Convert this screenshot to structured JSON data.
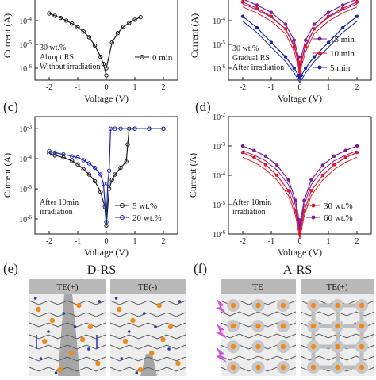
{
  "panel_labels": {
    "c": "(c)",
    "d": "(d)",
    "e": "(e)",
    "f": "(f)"
  },
  "colors": {
    "black": "#1a1a1a",
    "red": "#e0182b",
    "blue": "#1c26a8",
    "purple": "#7d1d96",
    "orange": "#f08a1c",
    "dot_blue": "#2a35a6",
    "gray_panel": "#ededed",
    "gray_header": "#b9b9b9",
    "lightning": "#d452d8"
  },
  "chart_data": [
    {
      "id": "a",
      "type": "line",
      "xlabel": "Voltage (V)",
      "ylabel": "Current (A)",
      "xlim": [
        -2.5,
        2.5
      ],
      "ylim_log10": [
        -6.5,
        -3
      ],
      "log_y": true,
      "xticks": [
        "-2",
        "-1",
        "0",
        "1",
        "2"
      ],
      "yticks": [
        "10-6",
        "10-5",
        "10-4"
      ],
      "annotation": [
        "30 wt.%",
        "Abrupt RS",
        "Without irradiation"
      ],
      "series": [
        {
          "name": "0 min",
          "color": "#1a1a1a",
          "x": [
            -2,
            -1.8,
            -1.6,
            -1.4,
            -1.2,
            -1,
            -0.8,
            -0.6,
            -0.4,
            -0.2,
            -0.1,
            0
          ],
          "y": [
            0.0002,
            0.00016,
            0.00013,
            0.0001,
            7.5e-05,
            5.2e-05,
            3.5e-05,
            2e-05,
            9e-06,
            3e-06,
            1.5e-06,
            5e-07
          ]
        },
        {
          "name": "",
          "color": "#1a1a1a",
          "x": [
            0,
            0.2,
            0.4,
            0.6,
            0.8,
            1.0,
            1.2
          ],
          "y": [
            1e-06,
            1.2e-05,
            3e-05,
            5.5e-05,
            8e-05,
            0.00011,
            0.00014
          ]
        }
      ]
    },
    {
      "id": "b",
      "type": "line",
      "xlabel": "Voltage (V)",
      "ylabel": "Current (A)",
      "xlim": [
        -2.5,
        2.5
      ],
      "ylim_log10": [
        -6.5,
        -3
      ],
      "log_y": true,
      "xticks": [
        "-2",
        "-1",
        "0",
        "1",
        "2"
      ],
      "yticks": [
        "10-6",
        "10-5",
        "10-4"
      ],
      "annotation": [
        "30 wt.%",
        "Gradual RS",
        "After irradiation"
      ],
      "legend_position": "right",
      "series": [
        {
          "name": "15 min",
          "color": "#7d1d96",
          "x": [
            -2,
            -1.5,
            -1,
            -0.5,
            -0.2,
            -0.05,
            0,
            0.05,
            0.2,
            0.5,
            1,
            1.5,
            2
          ],
          "y": [
            0.0008,
            0.00045,
            0.00022,
            7e-05,
            1.5e-05,
            3e-06,
            1e-06,
            3e-06,
            1.5e-05,
            7e-05,
            0.00022,
            0.00045,
            0.0008
          ]
        },
        {
          "name": "10 min",
          "color": "#e0182b",
          "x": [
            -2,
            -1.5,
            -1,
            -0.5,
            -0.2,
            -0.05,
            0,
            0.05,
            0.2,
            0.5,
            1,
            1.5,
            2
          ],
          "y": [
            0.0006,
            0.00033,
            0.00015,
            4.5e-05,
            8e-06,
            1.8e-06,
            7e-07,
            1.8e-06,
            8e-06,
            4.5e-05,
            0.00015,
            0.00033,
            0.0006
          ]
        },
        {
          "name": "5 min",
          "color": "#1c26a8",
          "x": [
            -2,
            -1.5,
            -1,
            -0.5,
            -0.2,
            -0.05,
            0,
            0.05,
            0.2,
            0.5,
            1,
            1.5,
            2
          ],
          "y": [
            0.00015,
            5e-05,
            1.2e-05,
            3e-06,
            1e-06,
            5e-07,
            4e-07,
            5e-07,
            1e-06,
            3e-06,
            1.2e-05,
            5e-05,
            0.00015
          ]
        }
      ]
    },
    {
      "id": "c",
      "type": "line",
      "xlabel": "Voltage (V)",
      "ylabel": "Current (A)",
      "xlim": [
        -2.5,
        2.5
      ],
      "ylim_log10": [
        -6.5,
        -2.6
      ],
      "log_y": true,
      "xticks": [
        "-2",
        "-1",
        "0",
        "1",
        "2"
      ],
      "yticks": [
        "10-6",
        "10-5",
        "10-4",
        "10-3"
      ],
      "annotation": [
        "After 10min",
        "irradiation"
      ],
      "legend_position": "bottom-right",
      "series": [
        {
          "name": "5 wt.%",
          "color": "#1a1a1a",
          "x": [
            -2,
            -1.8,
            -1.5,
            -1.2,
            -1,
            -0.8,
            -0.6,
            -0.4,
            -0.2,
            -0.05,
            0,
            0.1,
            0.2,
            0.3,
            0.5,
            0.7,
            0.75,
            0.8,
            1.0,
            1.5,
            2.0
          ],
          "y": [
            0.00015,
            0.00013,
            0.00011,
            8.5e-05,
            6.5e-05,
            4.5e-05,
            3e-05,
            1.8e-05,
            8e-06,
            2.5e-06,
            6e-07,
            1e-05,
            2e-05,
            3e-05,
            5e-05,
            8e-05,
            0.0003,
            0.001,
            0.001,
            0.001,
            0.001
          ]
        },
        {
          "name": "20 wt.%",
          "color": "#1c26a8",
          "x": [
            -2,
            -1.8,
            -1.5,
            -1.2,
            -1,
            -0.8,
            -0.6,
            -0.4,
            -0.2,
            -0.1,
            0,
            0.05,
            0.1,
            0.15,
            0.3,
            0.5,
            1.0,
            1.5,
            2.0
          ],
          "y": [
            0.00018,
            0.00016,
            0.00014,
            0.00012,
            0.00011,
            9e-05,
            7e-05,
            5e-05,
            3e-05,
            1.5e-05,
            8e-07,
            1.5e-05,
            4e-05,
            0.001,
            0.001,
            0.001,
            0.001,
            0.001,
            0.001
          ]
        }
      ]
    },
    {
      "id": "d",
      "type": "line",
      "xlabel": "Voltage (V)",
      "ylabel": "Current (A)",
      "xlim": [
        -2.5,
        2.5
      ],
      "ylim_log10": [
        -6,
        -2
      ],
      "log_y": true,
      "xticks": [
        "-2",
        "-1",
        "0",
        "1",
        "2"
      ],
      "yticks": [
        "10-6",
        "10-5",
        "10-4",
        "10-3",
        "10-2"
      ],
      "annotation": [
        "After 10min",
        "irradiation"
      ],
      "legend_position": "bottom-right",
      "series": [
        {
          "name": "30 wt.%",
          "color": "#e0182b",
          "x": [
            -2,
            -1.6,
            -1.2,
            -0.8,
            -0.4,
            -0.15,
            -0.03,
            0,
            0.03,
            0.15,
            0.4,
            0.8,
            1.2,
            1.6,
            2
          ],
          "y": [
            0.0006,
            0.0004,
            0.00023,
            0.0001,
            3e-05,
            6e-06,
            1.5e-06,
            1e-06,
            1.5e-06,
            6e-06,
            3e-05,
            0.0001,
            0.00023,
            0.0004,
            0.0006
          ]
        },
        {
          "name": "60 wt.%",
          "color": "#7d1d96",
          "x": [
            -2,
            -1.6,
            -1.2,
            -0.8,
            -0.4,
            -0.15,
            -0.03,
            0,
            0.03,
            0.15,
            0.4,
            0.8,
            1.2,
            1.6,
            2
          ],
          "y": [
            0.001,
            0.0007,
            0.00045,
            0.00022,
            7e-05,
            1.4e-05,
            3e-06,
            2e-06,
            3e-06,
            1.4e-05,
            7e-05,
            0.00022,
            0.00045,
            0.0007,
            0.001
          ]
        }
      ]
    }
  ],
  "schematics": {
    "e": {
      "title": "D-RS",
      "left_header": "TE(+)",
      "right_header": "TE(-)"
    },
    "f": {
      "title": "A-RS",
      "left_header": "TE",
      "right_header": "TE(+)"
    }
  }
}
